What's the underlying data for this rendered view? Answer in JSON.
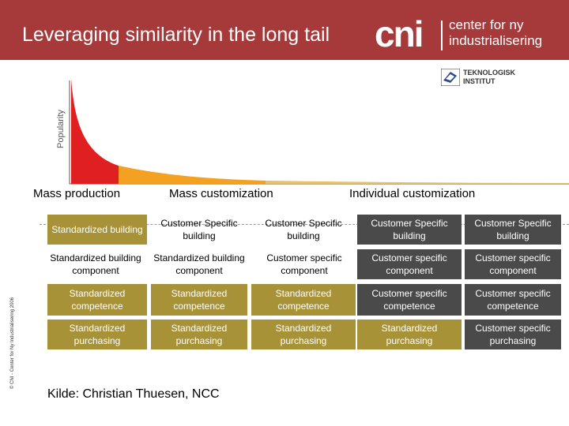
{
  "banner": {
    "title": "Leveraging similarity in the long tail",
    "logo_mark": "cni",
    "logo_text_line1": "center for ny",
    "logo_text_line2": "industrialisering",
    "color": "#a63a3a"
  },
  "partner_logo": {
    "line1": "TEKNOLOGISK",
    "line2": "INSTITUT"
  },
  "chart": {
    "y_label": "Popularity",
    "head_color": "#e02020",
    "mid_color": "#f4a020",
    "tail_color": "#e8c070"
  },
  "copyright": "© CNI - Center for Ny Industrialisering 2006",
  "columns": [
    "Mass production",
    "Mass customization",
    "Individual customization"
  ],
  "rows": [
    [
      "Standardized building",
      "Customer Specific building",
      "Customer Specific building",
      "Customer Specific building",
      "Customer Specific building"
    ],
    [
      "Standardized building component",
      "Standardized building component",
      "Customer specific component",
      "Customer specific component",
      "Customer specific component"
    ],
    [
      "Standardized competence",
      "Standardized competence",
      "Standardized competence",
      "Customer specific competence",
      "Customer specific competence"
    ],
    [
      "Standardized purchasing",
      "Standardized purchasing",
      "Standardized purchasing",
      "Standardized purchasing",
      "Customer specific purchasing"
    ]
  ],
  "source": "Kilde: Christian Thuesen, NCC",
  "colors": {
    "standardized": "#a89238",
    "customer_specific": "#4a4a4a"
  }
}
